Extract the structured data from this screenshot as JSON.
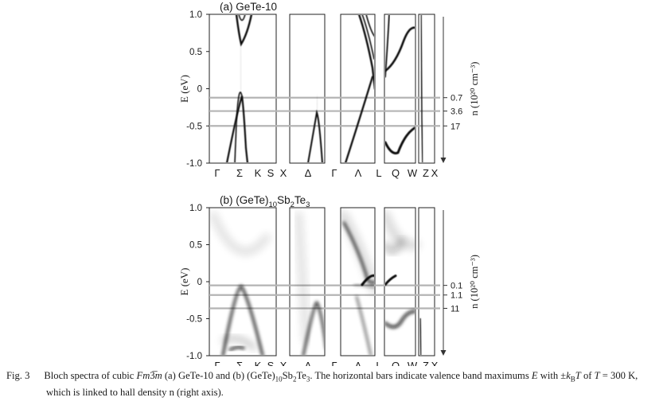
{
  "figure": {
    "panels": [
      {
        "title_prefix": "(a) GeTe-10",
        "yticks": [
          "1.0",
          "0.5",
          "0",
          "-0.5",
          "-1.0"
        ],
        "ylabel": "E (eV)",
        "n_label": "n (10²⁰ cm⁻³)",
        "n_ticks": [
          "0.7",
          "3.6",
          "17"
        ],
        "bar_energies_eV": [
          -0.12,
          -0.3,
          -0.5
        ]
      },
      {
        "title_prefix": "(b) (GeTe)",
        "title_sub1": "10",
        "title_mid": "Sb",
        "title_sub2": "2",
        "title_mid2": "Te",
        "title_sub3": "3",
        "yticks": [
          "1.0",
          "0.5",
          "0",
          "-0.5",
          "-1.0"
        ],
        "ylabel": "E (eV)",
        "n_label": "n (10²⁰ cm⁻³)",
        "n_ticks": [
          "0.1",
          "1.1",
          "11"
        ],
        "bar_energies_eV": [
          -0.05,
          -0.18,
          -0.36
        ]
      }
    ],
    "kpoints": [
      "Γ",
      "Σ",
      "K",
      "S",
      "X",
      "Δ",
      "Γ",
      "Λ",
      "L",
      "Q",
      "W",
      "Z",
      "X"
    ]
  },
  "chart_data": [
    {
      "type": "line",
      "title": "(a) GeTe-10",
      "ylabel": "E (eV)",
      "ylim": [
        -1.0,
        1.0
      ],
      "secondary_axis": {
        "label": "n (10^20 cm^-3)",
        "ticks": [
          "0.7",
          "3.6",
          "17"
        ]
      },
      "valence_band_maximum_bars_eV": [
        -0.12,
        -0.3,
        -0.5
      ],
      "x_labels": [
        "Γ",
        "Σ",
        "K",
        "S",
        "X",
        "Δ",
        "Γ",
        "Λ",
        "L",
        "Q",
        "W",
        "Z",
        "X"
      ]
    },
    {
      "type": "line",
      "title": "(b) (GeTe)10Sb2Te3",
      "ylabel": "E (eV)",
      "ylim": [
        -1.0,
        1.0
      ],
      "secondary_axis": {
        "label": "n (10^20 cm^-3)",
        "ticks": [
          "0.1",
          "1.1",
          "11"
        ]
      },
      "valence_band_maximum_bars_eV": [
        -0.05,
        -0.18,
        -0.36
      ],
      "x_labels": [
        "Γ",
        "Σ",
        "K",
        "S",
        "X",
        "Δ",
        "Γ",
        "Λ",
        "L",
        "Q",
        "W",
        "Z",
        "X"
      ]
    }
  ],
  "caption": {
    "label": "Fig. 3",
    "t1": "Bloch spectra of cubic ",
    "t2": " (a) GeTe-10 and (b) (GeTe)",
    "t3": "Sb",
    "t4": "Te",
    "t5": ". The horizontal bars indicate valence band maximums ",
    "t6": " with ±",
    "t7": " of ",
    "t8": " = 300 K,",
    "line2": "which is linked to hall density n (right axis)."
  }
}
